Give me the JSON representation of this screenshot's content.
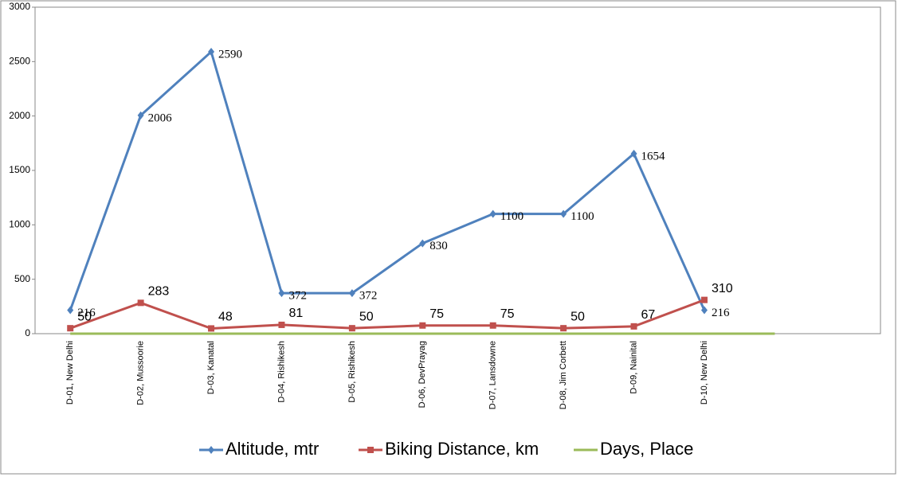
{
  "chart_data": {
    "type": "line",
    "categories": [
      "D-01, New Delhi",
      "D-02, Mussoorie",
      "D-03, Kanatal",
      "D-04, Rishikesh",
      "D-05, Rishikesh",
      "D-06, DevPrayag",
      "D-07, Lansdowne",
      "D-08, Jim Corbett",
      "D-09, Nainital",
      "D-10, New Delhi",
      null,
      null
    ],
    "series": [
      {
        "name": "Altitude, mtr",
        "color": "#4f81bd",
        "marker": "diamond",
        "values": [
          216,
          2006,
          2590,
          372,
          372,
          830,
          1100,
          1100,
          1654,
          216,
          null,
          null
        ]
      },
      {
        "name": "Biking Distance, km",
        "color": "#c0504d",
        "marker": "square",
        "values": [
          50,
          283,
          48,
          81,
          50,
          75,
          75,
          50,
          67,
          310,
          null,
          null
        ]
      },
      {
        "name": "Days, Place",
        "color": "#9bbb59",
        "marker": "none",
        "values": [
          0,
          0,
          0,
          0,
          0,
          0,
          0,
          0,
          0,
          0,
          0,
          null
        ]
      }
    ],
    "ylim": [
      0,
      3000
    ],
    "yticks": [
      0,
      500,
      1000,
      1500,
      2000,
      2500,
      3000
    ],
    "grid": false,
    "legend": "bottom"
  }
}
